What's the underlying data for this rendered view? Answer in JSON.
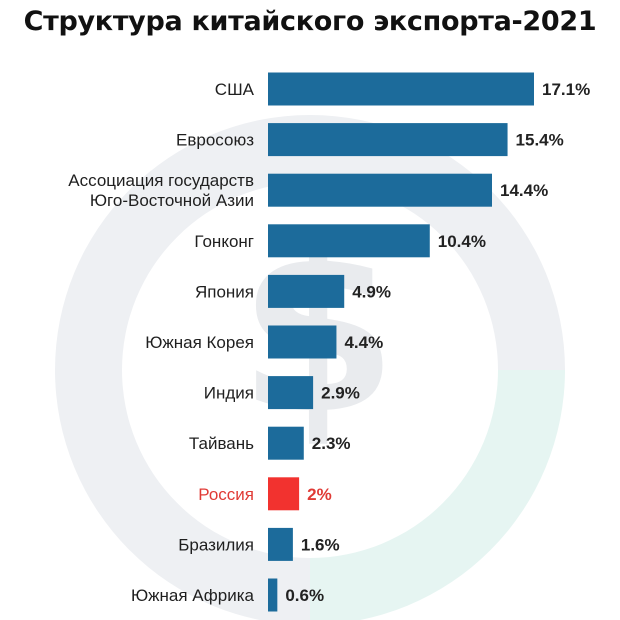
{
  "chart_data": {
    "type": "bar",
    "orientation": "horizontal",
    "title": "Структура китайского экспорта-2021",
    "categories": [
      "США",
      "Евросоюз",
      "Ассоциация государств\nЮго-Восточной Азии",
      "Гонконг",
      "Япония",
      "Южная Корея",
      "Индия",
      "Тайвань",
      "Россия",
      "Бразилия",
      "Южная Африка"
    ],
    "values": [
      17.1,
      15.4,
      14.4,
      10.4,
      4.9,
      4.4,
      2.9,
      2.3,
      2,
      1.6,
      0.6
    ],
    "value_labels": [
      "17.1%",
      "15.4%",
      "14.4%",
      "10.4%",
      "4.9%",
      "4.4%",
      "2.9%",
      "2.3%",
      "2%",
      "1.6%",
      "0.6%"
    ],
    "highlight_category": "Россия",
    "xlim": [
      0,
      17.1
    ],
    "grid": false,
    "colors": {
      "bar": "#1c6b9b",
      "highlight": "#f2322f",
      "highlight_text": "#e03a35",
      "ring_gray": "#eef0f3",
      "ring_teal": "#e6f5f2",
      "watermark": "#e9ebee"
    },
    "background_icon": "dollar-ring-icon"
  }
}
